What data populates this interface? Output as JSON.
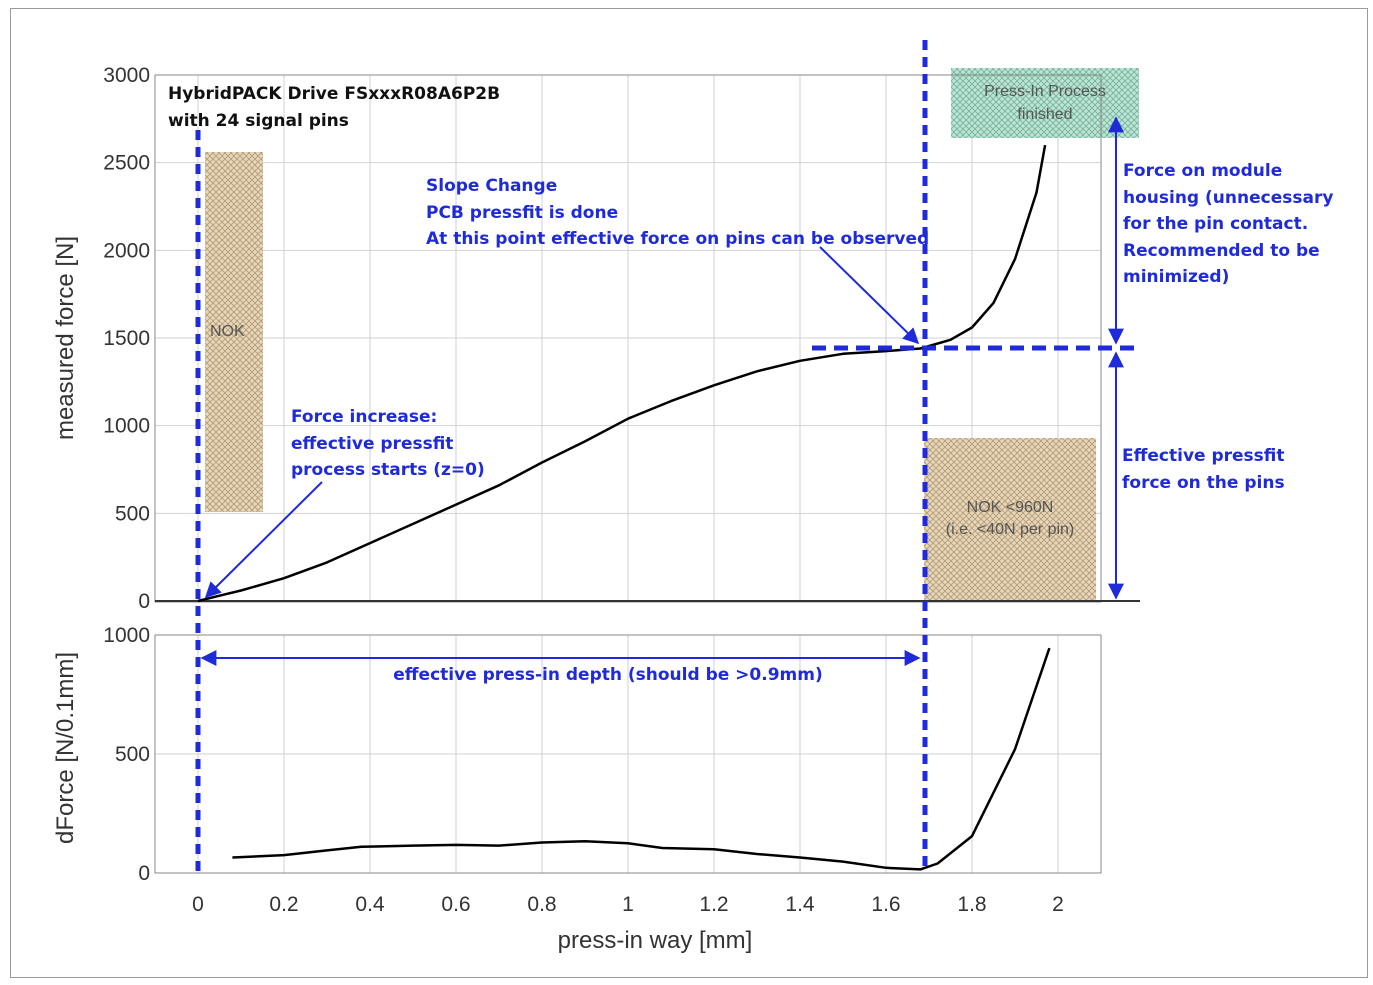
{
  "chart_data": [
    {
      "type": "line",
      "title": "HybridPACK Drive FSxxxR08A6P2B",
      "subtitle": "with 24 signal pins",
      "xlabel": "press-in way [mm]",
      "ylabel": "measured force [N]",
      "xlim": [
        -0.1,
        2.1
      ],
      "ylim": [
        0,
        3000
      ],
      "yticks": [
        "0",
        "500",
        "1000",
        "1500",
        "2000",
        "2500",
        "3000"
      ],
      "grid": true,
      "series": [
        {
          "x": [
            0,
            0.05,
            0.1,
            0.2,
            0.3,
            0.4,
            0.5,
            0.6,
            0.7,
            0.8,
            0.9,
            1.0,
            1.1,
            1.2,
            1.3,
            1.4,
            1.5,
            1.6,
            1.68,
            1.75,
            1.8,
            1.85,
            1.9,
            1.95,
            1.97
          ],
          "y": [
            0,
            30,
            60,
            130,
            220,
            330,
            440,
            550,
            660,
            790,
            910,
            1040,
            1140,
            1230,
            1310,
            1370,
            1410,
            1425,
            1440,
            1490,
            1560,
            1700,
            1950,
            2330,
            2600
          ]
        }
      ],
      "zones": [
        {
          "label": "NOK"
        },
        {
          "label": "Press-In Process",
          "label2": "finished"
        },
        {
          "label": "NOK <960N",
          "label2": "(i.e. <40N per pin)"
        }
      ],
      "annotations": {
        "slope_lines": [
          "Slope Change",
          "PCB pressfit is done",
          "At this point effective force on pins can be observed"
        ],
        "increase_lines": [
          "Force increase:",
          "effective pressfit",
          "process starts (z=0)"
        ],
        "housing_lines": [
          "Force on module",
          "housing (unnecessary",
          "for the pin contact.",
          "Recommended to be",
          "minimized)"
        ],
        "pins_lines": [
          "Effective pressfit",
          "force on the pins"
        ]
      }
    },
    {
      "type": "line",
      "xlabel": "press-in way [mm]",
      "ylabel": "dForce [N/0.1mm]",
      "xlim": [
        -0.1,
        2.1
      ],
      "ylim": [
        0,
        1000
      ],
      "xticks": [
        "0",
        "0.2",
        "0.4",
        "0.6",
        "0.8",
        "1",
        "1.2",
        "1.4",
        "1.6",
        "1.8",
        "2"
      ],
      "yticks": [
        "0",
        "500",
        "1000"
      ],
      "grid": true,
      "series": [
        {
          "x": [
            0.08,
            0.2,
            0.3,
            0.38,
            0.5,
            0.6,
            0.7,
            0.8,
            0.9,
            1.0,
            1.08,
            1.2,
            1.3,
            1.4,
            1.5,
            1.6,
            1.68,
            1.72,
            1.8,
            1.9,
            1.98
          ],
          "y": [
            65,
            75,
            95,
            110,
            115,
            118,
            115,
            128,
            133,
            125,
            105,
            100,
            80,
            65,
            48,
            22,
            15,
            40,
            155,
            520,
            945
          ]
        }
      ],
      "annotations": {
        "depth_label": "effective press-in depth (should be >0.9mm)"
      }
    }
  ],
  "colors": {
    "annotation_blue": "#1f2bd9",
    "curve": "#000000",
    "grid": "#d2d2d2",
    "nok_fill": "#d9c5a6",
    "finished_fill": "#a6d4c4"
  }
}
